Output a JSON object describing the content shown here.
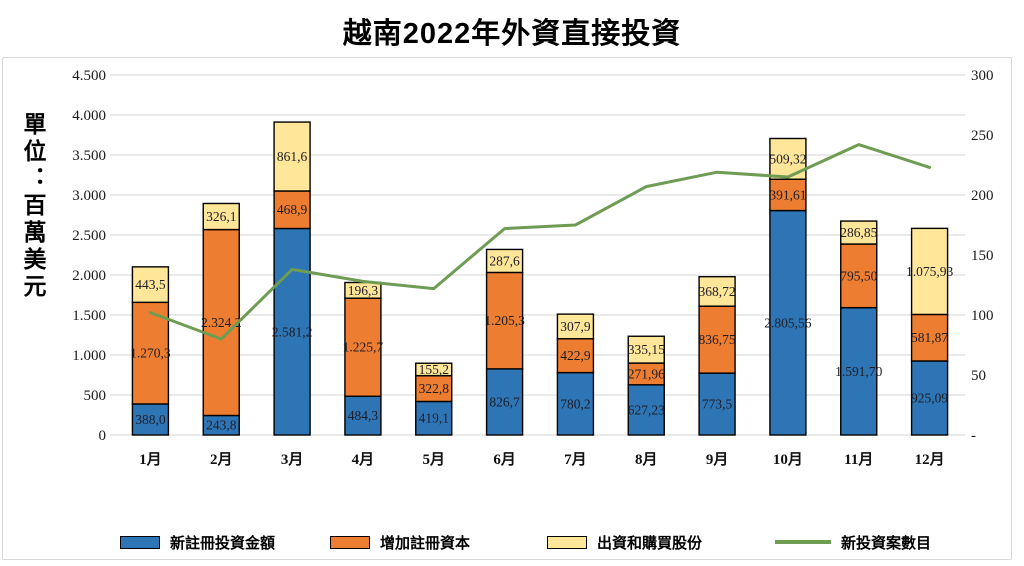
{
  "title": "越南2022年外資直接投資",
  "unit_label": "單位：百萬美元",
  "chart_data": {
    "type": "bar",
    "subtype": "stacked-bar-with-line",
    "title": "越南2022年外資直接投資",
    "unit_label": "單位：百萬美元",
    "categories": [
      "1月",
      "2月",
      "3月",
      "4月",
      "5月",
      "6月",
      "7月",
      "8月",
      "9月",
      "10月",
      "11月",
      "12月"
    ],
    "series": [
      {
        "name": "新註冊投資金額",
        "color": "#2E75B6",
        "values": [
          388.0,
          243.8,
          2581.2,
          484.3,
          419.1,
          826.7,
          780.2,
          627.23,
          773.5,
          2805.56,
          1591.7,
          925.09
        ],
        "labels": [
          "388,0",
          "243,8",
          "2.581,2",
          "484,3",
          "419,1",
          "826,7",
          "780,2",
          "627,23",
          "773,5",
          "2.805,56",
          "1.591,70",
          "925,09"
        ]
      },
      {
        "name": "增加註冊資本",
        "color": "#ED7D31",
        "values": [
          1270.3,
          2324.2,
          468.9,
          1225.7,
          322.8,
          1205.3,
          422.9,
          271.96,
          836.75,
          391.61,
          795.5,
          581.87
        ],
        "labels": [
          "1.270,3",
          "2.324,2",
          "468,9",
          "1.225,7",
          "322,8",
          "1.205,3",
          "422,9",
          "271,96",
          "836,75",
          "391,61",
          "795,50",
          "581,87"
        ]
      },
      {
        "name": "出資和購買股份",
        "color": "#FFE699",
        "values": [
          443.5,
          326.1,
          861.6,
          196.3,
          155.2,
          287.6,
          307.9,
          335.15,
          368.72,
          509.32,
          286.85,
          1075.93
        ],
        "labels": [
          "443,5",
          "326,1",
          "861,6",
          "196,3",
          "155,2",
          "287,6",
          "307,9",
          "335,15",
          "368,72",
          "509,32",
          "286,85",
          "1.075,93"
        ]
      }
    ],
    "line_series": {
      "name": "新投資案數目",
      "color": "#6E9C53",
      "values": [
        102,
        80,
        138,
        128,
        122,
        172,
        175,
        207,
        219,
        215,
        242,
        223
      ]
    },
    "left_axis": {
      "min": 0,
      "max": 4500,
      "step": 500,
      "ticks": [
        "4.500",
        "4.000",
        "3.500",
        "3.000",
        "2.500",
        "2.000",
        "1.500",
        "1.000",
        "500",
        "0"
      ]
    },
    "right_axis": {
      "min": 0,
      "max": 300,
      "step": 50,
      "ticks": [
        "300",
        "250",
        "200",
        "150",
        "100",
        "50",
        "-"
      ]
    },
    "grid": true,
    "legend_position": "bottom",
    "bar_border_color": "#000000",
    "gridline_color": "#D6D6D6"
  }
}
